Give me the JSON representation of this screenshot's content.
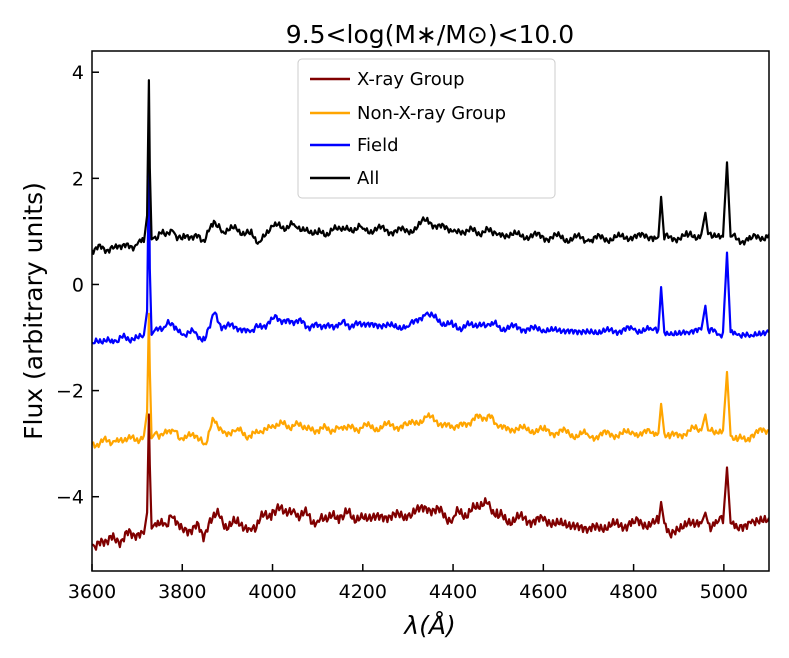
{
  "chart_data": {
    "type": "line",
    "title": "9.5<log(M∗/M⊙)<10.0",
    "xlabel": "λ(Å)",
    "ylabel": "Flux (arbitrary units)",
    "xlim": [
      3600,
      5100
    ],
    "ylim": [
      -5.4,
      4.4
    ],
    "xticks": [
      3600,
      3800,
      4000,
      4200,
      4400,
      4600,
      4800,
      5000
    ],
    "yticks": [
      -4,
      -2,
      0,
      2,
      4
    ],
    "xtick_labels": [
      "3600",
      "3800",
      "4000",
      "4200",
      "4400",
      "4600",
      "4800",
      "5000"
    ],
    "ytick_labels": [
      "−4",
      "−2",
      "0",
      "2",
      "4"
    ],
    "grid": false,
    "legend_position": "top-center",
    "series": [
      {
        "name": "X-ray Group",
        "color": "#800000",
        "x": [
          3600,
          3650,
          3700,
          3715,
          3722,
          3726,
          3728,
          3732,
          3740,
          3760,
          3780,
          3800,
          3830,
          3850,
          3870,
          3890,
          3920,
          3950,
          3970,
          4000,
          4050,
          4100,
          4150,
          4200,
          4300,
          4340,
          4400,
          4480,
          4500,
          4600,
          4700,
          4800,
          4840,
          4855,
          4861,
          4868,
          4880,
          4920,
          4950,
          4959,
          4965,
          4985,
          4998,
          5007,
          5015,
          5030,
          5060,
          5100
        ],
        "y": [
          -4.9,
          -4.8,
          -4.7,
          -4.7,
          -4.3,
          -2.45,
          -3.4,
          -4.6,
          -4.5,
          -4.5,
          -4.4,
          -4.6,
          -4.6,
          -4.7,
          -4.3,
          -4.5,
          -4.5,
          -4.6,
          -4.5,
          -4.25,
          -4.3,
          -4.45,
          -4.35,
          -4.4,
          -4.35,
          -4.2,
          -4.4,
          -4.1,
          -4.4,
          -4.45,
          -4.6,
          -4.5,
          -4.5,
          -4.5,
          -4.1,
          -4.5,
          -4.7,
          -4.5,
          -4.5,
          -4.3,
          -4.5,
          -4.5,
          -4.5,
          -3.45,
          -4.5,
          -4.6,
          -4.5,
          -4.4
        ]
      },
      {
        "name": "Non-X-ray Group",
        "color": "#ffa500",
        "x": [
          3600,
          3650,
          3700,
          3715,
          3722,
          3726,
          3728,
          3732,
          3740,
          3760,
          3780,
          3800,
          3830,
          3850,
          3870,
          3890,
          3920,
          3950,
          3970,
          4000,
          4050,
          4100,
          4150,
          4200,
          4300,
          4340,
          4400,
          4480,
          4500,
          4600,
          4700,
          4800,
          4840,
          4855,
          4861,
          4868,
          4880,
          4920,
          4950,
          4959,
          4965,
          4985,
          4998,
          5007,
          5015,
          5030,
          5060,
          5100
        ],
        "y": [
          -3.0,
          -2.95,
          -2.9,
          -2.85,
          -2.4,
          -0.55,
          -1.6,
          -2.9,
          -2.8,
          -2.8,
          -2.75,
          -2.9,
          -2.85,
          -3.0,
          -2.55,
          -2.8,
          -2.75,
          -2.85,
          -2.8,
          -2.65,
          -2.65,
          -2.75,
          -2.7,
          -2.7,
          -2.65,
          -2.5,
          -2.7,
          -2.45,
          -2.7,
          -2.75,
          -2.85,
          -2.8,
          -2.8,
          -2.8,
          -2.25,
          -2.8,
          -2.9,
          -2.75,
          -2.75,
          -2.45,
          -2.75,
          -2.8,
          -2.75,
          -1.65,
          -2.85,
          -2.95,
          -2.85,
          -2.75
        ]
      },
      {
        "name": "Field",
        "color": "#0000ff",
        "x": [
          3600,
          3650,
          3700,
          3715,
          3722,
          3726,
          3728,
          3732,
          3740,
          3760,
          3780,
          3800,
          3830,
          3850,
          3870,
          3890,
          3920,
          3950,
          3970,
          4000,
          4050,
          4100,
          4150,
          4200,
          4300,
          4340,
          4400,
          4480,
          4500,
          4600,
          4700,
          4800,
          4840,
          4855,
          4861,
          4868,
          4880,
          4920,
          4950,
          4959,
          4965,
          4985,
          4998,
          5007,
          5015,
          5030,
          5060,
          5100
        ],
        "y": [
          -1.1,
          -1.05,
          -1.0,
          -0.95,
          -0.5,
          2.4,
          0.3,
          -0.95,
          -0.85,
          -0.8,
          -0.75,
          -0.95,
          -0.9,
          -1.05,
          -0.55,
          -0.8,
          -0.8,
          -0.9,
          -0.8,
          -0.65,
          -0.7,
          -0.8,
          -0.75,
          -0.75,
          -0.8,
          -0.55,
          -0.8,
          -0.75,
          -0.8,
          -0.85,
          -0.9,
          -0.85,
          -0.85,
          -0.85,
          -0.05,
          -0.9,
          -0.95,
          -0.9,
          -0.85,
          -0.4,
          -0.85,
          -0.95,
          -0.9,
          0.6,
          -0.9,
          -0.95,
          -0.95,
          -0.9
        ]
      },
      {
        "name": "All",
        "color": "#000000",
        "x": [
          3600,
          3650,
          3700,
          3715,
          3722,
          3726,
          3728,
          3732,
          3740,
          3760,
          3780,
          3800,
          3830,
          3850,
          3870,
          3890,
          3920,
          3950,
          3970,
          4000,
          4050,
          4100,
          4150,
          4200,
          4300,
          4340,
          4400,
          4480,
          4500,
          4600,
          4700,
          4800,
          4840,
          4855,
          4861,
          4868,
          4880,
          4920,
          4950,
          4959,
          4965,
          4985,
          4998,
          5007,
          5015,
          5030,
          5060,
          5100
        ],
        "y": [
          0.65,
          0.7,
          0.75,
          0.8,
          1.3,
          3.85,
          2.2,
          0.85,
          0.9,
          0.95,
          1.0,
          0.85,
          0.95,
          0.8,
          1.2,
          1.0,
          1.05,
          0.95,
          0.8,
          1.1,
          1.1,
          0.95,
          1.05,
          1.05,
          1.0,
          1.2,
          1.0,
          1.0,
          0.95,
          0.9,
          0.85,
          0.9,
          0.9,
          0.9,
          1.65,
          0.85,
          0.9,
          0.9,
          0.95,
          1.35,
          0.95,
          0.9,
          0.9,
          2.3,
          0.9,
          0.85,
          0.85,
          0.95
        ]
      }
    ]
  }
}
